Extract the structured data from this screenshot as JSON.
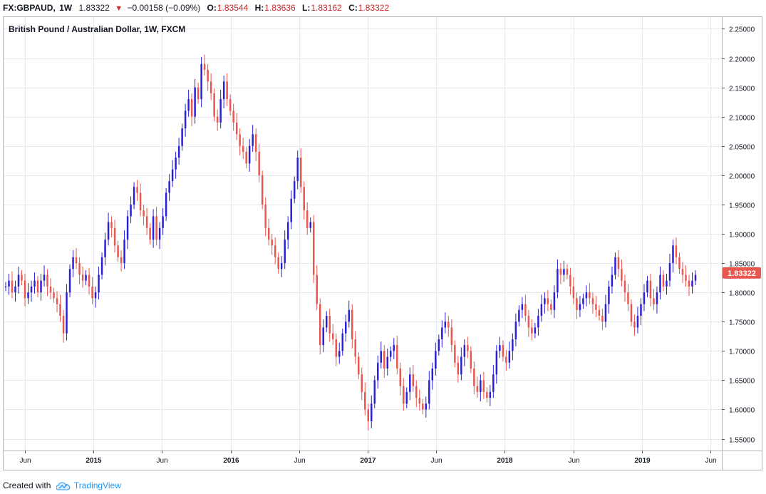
{
  "header": {
    "symbol": "FX:GBPAUD,",
    "interval": "1W",
    "last": "1.83322",
    "direction_icon": "triangle-down-icon",
    "change": "−0.00158 (−0.09%)",
    "ohlc": [
      {
        "key": "O:",
        "value": "1.83544"
      },
      {
        "key": "H:",
        "value": "1.83636"
      },
      {
        "key": "L:",
        "value": "1.83162"
      },
      {
        "key": "C:",
        "value": "1.83322"
      }
    ]
  },
  "footer": {
    "created_with": "Created with",
    "brand": "TradingView",
    "logo_icon": "tradingview-cloud-icon"
  },
  "colors": {
    "up": "#2b1fd6",
    "down": "#e8574f",
    "last_price_badge": "#e8574f",
    "grid": "#e6e9ef",
    "axis": "#555555"
  },
  "chart_data": {
    "type": "candlestick",
    "title": "British Pound / Australian Dollar, 1W, FXCM",
    "ylim": [
      1.53,
      2.27
    ],
    "y_ticks": [
      "1.55000",
      "1.60000",
      "1.65000",
      "1.70000",
      "1.75000",
      "1.80000",
      "1.85000",
      "1.90000",
      "1.95000",
      "2.00000",
      "2.05000",
      "2.10000",
      "2.15000",
      "2.20000",
      "2.25000"
    ],
    "x_ticks": [
      "Jun",
      "2015",
      "Jun",
      "2016",
      "Jun",
      "2017",
      "Jun",
      "2018",
      "Jun",
      "2019",
      "Jun"
    ],
    "x_range": [
      "2014-04",
      "2019-06"
    ],
    "last_price": "1.83322",
    "grid": true,
    "series": [
      {
        "values": [
          [
            1.81,
            1.81
          ],
          [
            1.81,
            1.82
          ],
          [
            1.82,
            1.8
          ],
          [
            1.8,
            1.81
          ],
          [
            1.81,
            1.83
          ],
          [
            1.83,
            1.82
          ],
          [
            1.82,
            1.79
          ],
          [
            1.79,
            1.8
          ],
          [
            1.8,
            1.81
          ],
          [
            1.81,
            1.82
          ],
          [
            1.82,
            1.8
          ],
          [
            1.8,
            1.82
          ],
          [
            1.82,
            1.83
          ],
          [
            1.83,
            1.81
          ],
          [
            1.81,
            1.8
          ],
          [
            1.8,
            1.79
          ],
          [
            1.79,
            1.78
          ],
          [
            1.78,
            1.76
          ],
          [
            1.76,
            1.73
          ],
          [
            1.73,
            1.8
          ],
          [
            1.8,
            1.84
          ],
          [
            1.84,
            1.86
          ],
          [
            1.86,
            1.85
          ],
          [
            1.85,
            1.83
          ],
          [
            1.83,
            1.82
          ],
          [
            1.82,
            1.83
          ],
          [
            1.83,
            1.81
          ],
          [
            1.81,
            1.79
          ],
          [
            1.79,
            1.8
          ],
          [
            1.8,
            1.83
          ],
          [
            1.83,
            1.86
          ],
          [
            1.86,
            1.89
          ],
          [
            1.89,
            1.92
          ],
          [
            1.92,
            1.91
          ],
          [
            1.91,
            1.88
          ],
          [
            1.88,
            1.86
          ],
          [
            1.86,
            1.85
          ],
          [
            1.85,
            1.89
          ],
          [
            1.89,
            1.93
          ],
          [
            1.93,
            1.95
          ],
          [
            1.95,
            1.98
          ],
          [
            1.98,
            1.97
          ],
          [
            1.97,
            1.94
          ],
          [
            1.94,
            1.93
          ],
          [
            1.93,
            1.91
          ],
          [
            1.91,
            1.89
          ],
          [
            1.89,
            1.93
          ],
          [
            1.93,
            1.89
          ],
          [
            1.89,
            1.91
          ],
          [
            1.91,
            1.93
          ],
          [
            1.93,
            1.97
          ],
          [
            1.97,
            1.99
          ],
          [
            1.99,
            2.01
          ],
          [
            2.01,
            2.03
          ],
          [
            2.03,
            2.05
          ],
          [
            2.05,
            2.08
          ],
          [
            2.08,
            2.11
          ],
          [
            2.11,
            2.13
          ],
          [
            2.13,
            2.1
          ],
          [
            2.1,
            2.15
          ],
          [
            2.15,
            2.13
          ],
          [
            2.13,
            2.19
          ],
          [
            2.19,
            2.18
          ],
          [
            2.18,
            2.16
          ],
          [
            2.16,
            2.14
          ],
          [
            2.14,
            2.1
          ],
          [
            2.1,
            2.09
          ],
          [
            2.09,
            2.13
          ],
          [
            2.13,
            2.16
          ],
          [
            2.16,
            2.13
          ],
          [
            2.13,
            2.11
          ],
          [
            2.11,
            2.09
          ],
          [
            2.09,
            2.07
          ],
          [
            2.07,
            2.05
          ],
          [
            2.05,
            2.04
          ],
          [
            2.04,
            2.02
          ],
          [
            2.02,
            2.05
          ],
          [
            2.05,
            2.07
          ],
          [
            2.07,
            2.04
          ],
          [
            2.04,
            2.0
          ],
          [
            2.0,
            1.95
          ],
          [
            1.95,
            1.91
          ],
          [
            1.91,
            1.89
          ],
          [
            1.89,
            1.88
          ],
          [
            1.88,
            1.86
          ],
          [
            1.86,
            1.84
          ],
          [
            1.84,
            1.85
          ],
          [
            1.85,
            1.89
          ],
          [
            1.89,
            1.92
          ],
          [
            1.92,
            1.96
          ],
          [
            1.96,
            1.99
          ],
          [
            1.99,
            2.03
          ],
          [
            2.03,
            1.98
          ],
          [
            1.98,
            1.94
          ],
          [
            1.94,
            1.91
          ],
          [
            1.91,
            1.92
          ],
          [
            1.92,
            1.83
          ],
          [
            1.83,
            1.78
          ],
          [
            1.78,
            1.71
          ],
          [
            1.71,
            1.74
          ],
          [
            1.74,
            1.76
          ],
          [
            1.76,
            1.73
          ],
          [
            1.73,
            1.72
          ],
          [
            1.72,
            1.69
          ],
          [
            1.69,
            1.7
          ],
          [
            1.7,
            1.73
          ],
          [
            1.73,
            1.75
          ],
          [
            1.75,
            1.77
          ],
          [
            1.77,
            1.72
          ],
          [
            1.72,
            1.69
          ],
          [
            1.69,
            1.66
          ],
          [
            1.66,
            1.63
          ],
          [
            1.63,
            1.6
          ],
          [
            1.6,
            1.58
          ],
          [
            1.58,
            1.61
          ],
          [
            1.61,
            1.65
          ],
          [
            1.65,
            1.68
          ],
          [
            1.68,
            1.7
          ],
          [
            1.7,
            1.67
          ],
          [
            1.67,
            1.69
          ],
          [
            1.69,
            1.7
          ],
          [
            1.7,
            1.71
          ],
          [
            1.71,
            1.67
          ],
          [
            1.67,
            1.64
          ],
          [
            1.64,
            1.61
          ],
          [
            1.61,
            1.63
          ],
          [
            1.63,
            1.66
          ],
          [
            1.66,
            1.64
          ],
          [
            1.64,
            1.62
          ],
          [
            1.62,
            1.61
          ],
          [
            1.61,
            1.6
          ],
          [
            1.6,
            1.61
          ],
          [
            1.61,
            1.65
          ],
          [
            1.65,
            1.67
          ],
          [
            1.67,
            1.7
          ],
          [
            1.7,
            1.72
          ],
          [
            1.72,
            1.74
          ],
          [
            1.74,
            1.75
          ],
          [
            1.75,
            1.74
          ],
          [
            1.74,
            1.71
          ],
          [
            1.71,
            1.68
          ],
          [
            1.68,
            1.66
          ],
          [
            1.66,
            1.69
          ],
          [
            1.69,
            1.71
          ],
          [
            1.71,
            1.7
          ],
          [
            1.7,
            1.67
          ],
          [
            1.67,
            1.64
          ],
          [
            1.64,
            1.63
          ],
          [
            1.63,
            1.65
          ],
          [
            1.65,
            1.63
          ],
          [
            1.63,
            1.62
          ],
          [
            1.62,
            1.63
          ],
          [
            1.63,
            1.66
          ],
          [
            1.66,
            1.7
          ],
          [
            1.7,
            1.71
          ],
          [
            1.71,
            1.69
          ],
          [
            1.69,
            1.68
          ],
          [
            1.68,
            1.7
          ],
          [
            1.7,
            1.72
          ],
          [
            1.72,
            1.75
          ],
          [
            1.75,
            1.77
          ],
          [
            1.77,
            1.78
          ],
          [
            1.78,
            1.76
          ],
          [
            1.76,
            1.74
          ],
          [
            1.74,
            1.73
          ],
          [
            1.73,
            1.74
          ],
          [
            1.74,
            1.76
          ],
          [
            1.76,
            1.78
          ],
          [
            1.78,
            1.79
          ],
          [
            1.79,
            1.78
          ],
          [
            1.78,
            1.77
          ],
          [
            1.77,
            1.8
          ],
          [
            1.8,
            1.84
          ],
          [
            1.84,
            1.83
          ],
          [
            1.83,
            1.84
          ],
          [
            1.84,
            1.83
          ],
          [
            1.83,
            1.81
          ],
          [
            1.81,
            1.79
          ],
          [
            1.79,
            1.77
          ],
          [
            1.77,
            1.78
          ],
          [
            1.78,
            1.79
          ],
          [
            1.79,
            1.8
          ],
          [
            1.8,
            1.79
          ],
          [
            1.79,
            1.78
          ],
          [
            1.78,
            1.77
          ],
          [
            1.77,
            1.76
          ],
          [
            1.76,
            1.75
          ],
          [
            1.75,
            1.78
          ],
          [
            1.78,
            1.81
          ],
          [
            1.81,
            1.83
          ],
          [
            1.83,
            1.86
          ],
          [
            1.86,
            1.84
          ],
          [
            1.84,
            1.82
          ],
          [
            1.82,
            1.8
          ],
          [
            1.8,
            1.78
          ],
          [
            1.78,
            1.75
          ],
          [
            1.75,
            1.74
          ],
          [
            1.74,
            1.76
          ],
          [
            1.76,
            1.78
          ],
          [
            1.78,
            1.8
          ],
          [
            1.8,
            1.82
          ],
          [
            1.82,
            1.79
          ],
          [
            1.79,
            1.78
          ],
          [
            1.78,
            1.8
          ],
          [
            1.8,
            1.83
          ],
          [
            1.83,
            1.81
          ],
          [
            1.81,
            1.82
          ],
          [
            1.82,
            1.85
          ],
          [
            1.85,
            1.88
          ],
          [
            1.88,
            1.86
          ],
          [
            1.86,
            1.84
          ],
          [
            1.84,
            1.83
          ],
          [
            1.83,
            1.82
          ],
          [
            1.82,
            1.81
          ],
          [
            1.81,
            1.82
          ],
          [
            1.82,
            1.83
          ]
        ]
      }
    ]
  }
}
